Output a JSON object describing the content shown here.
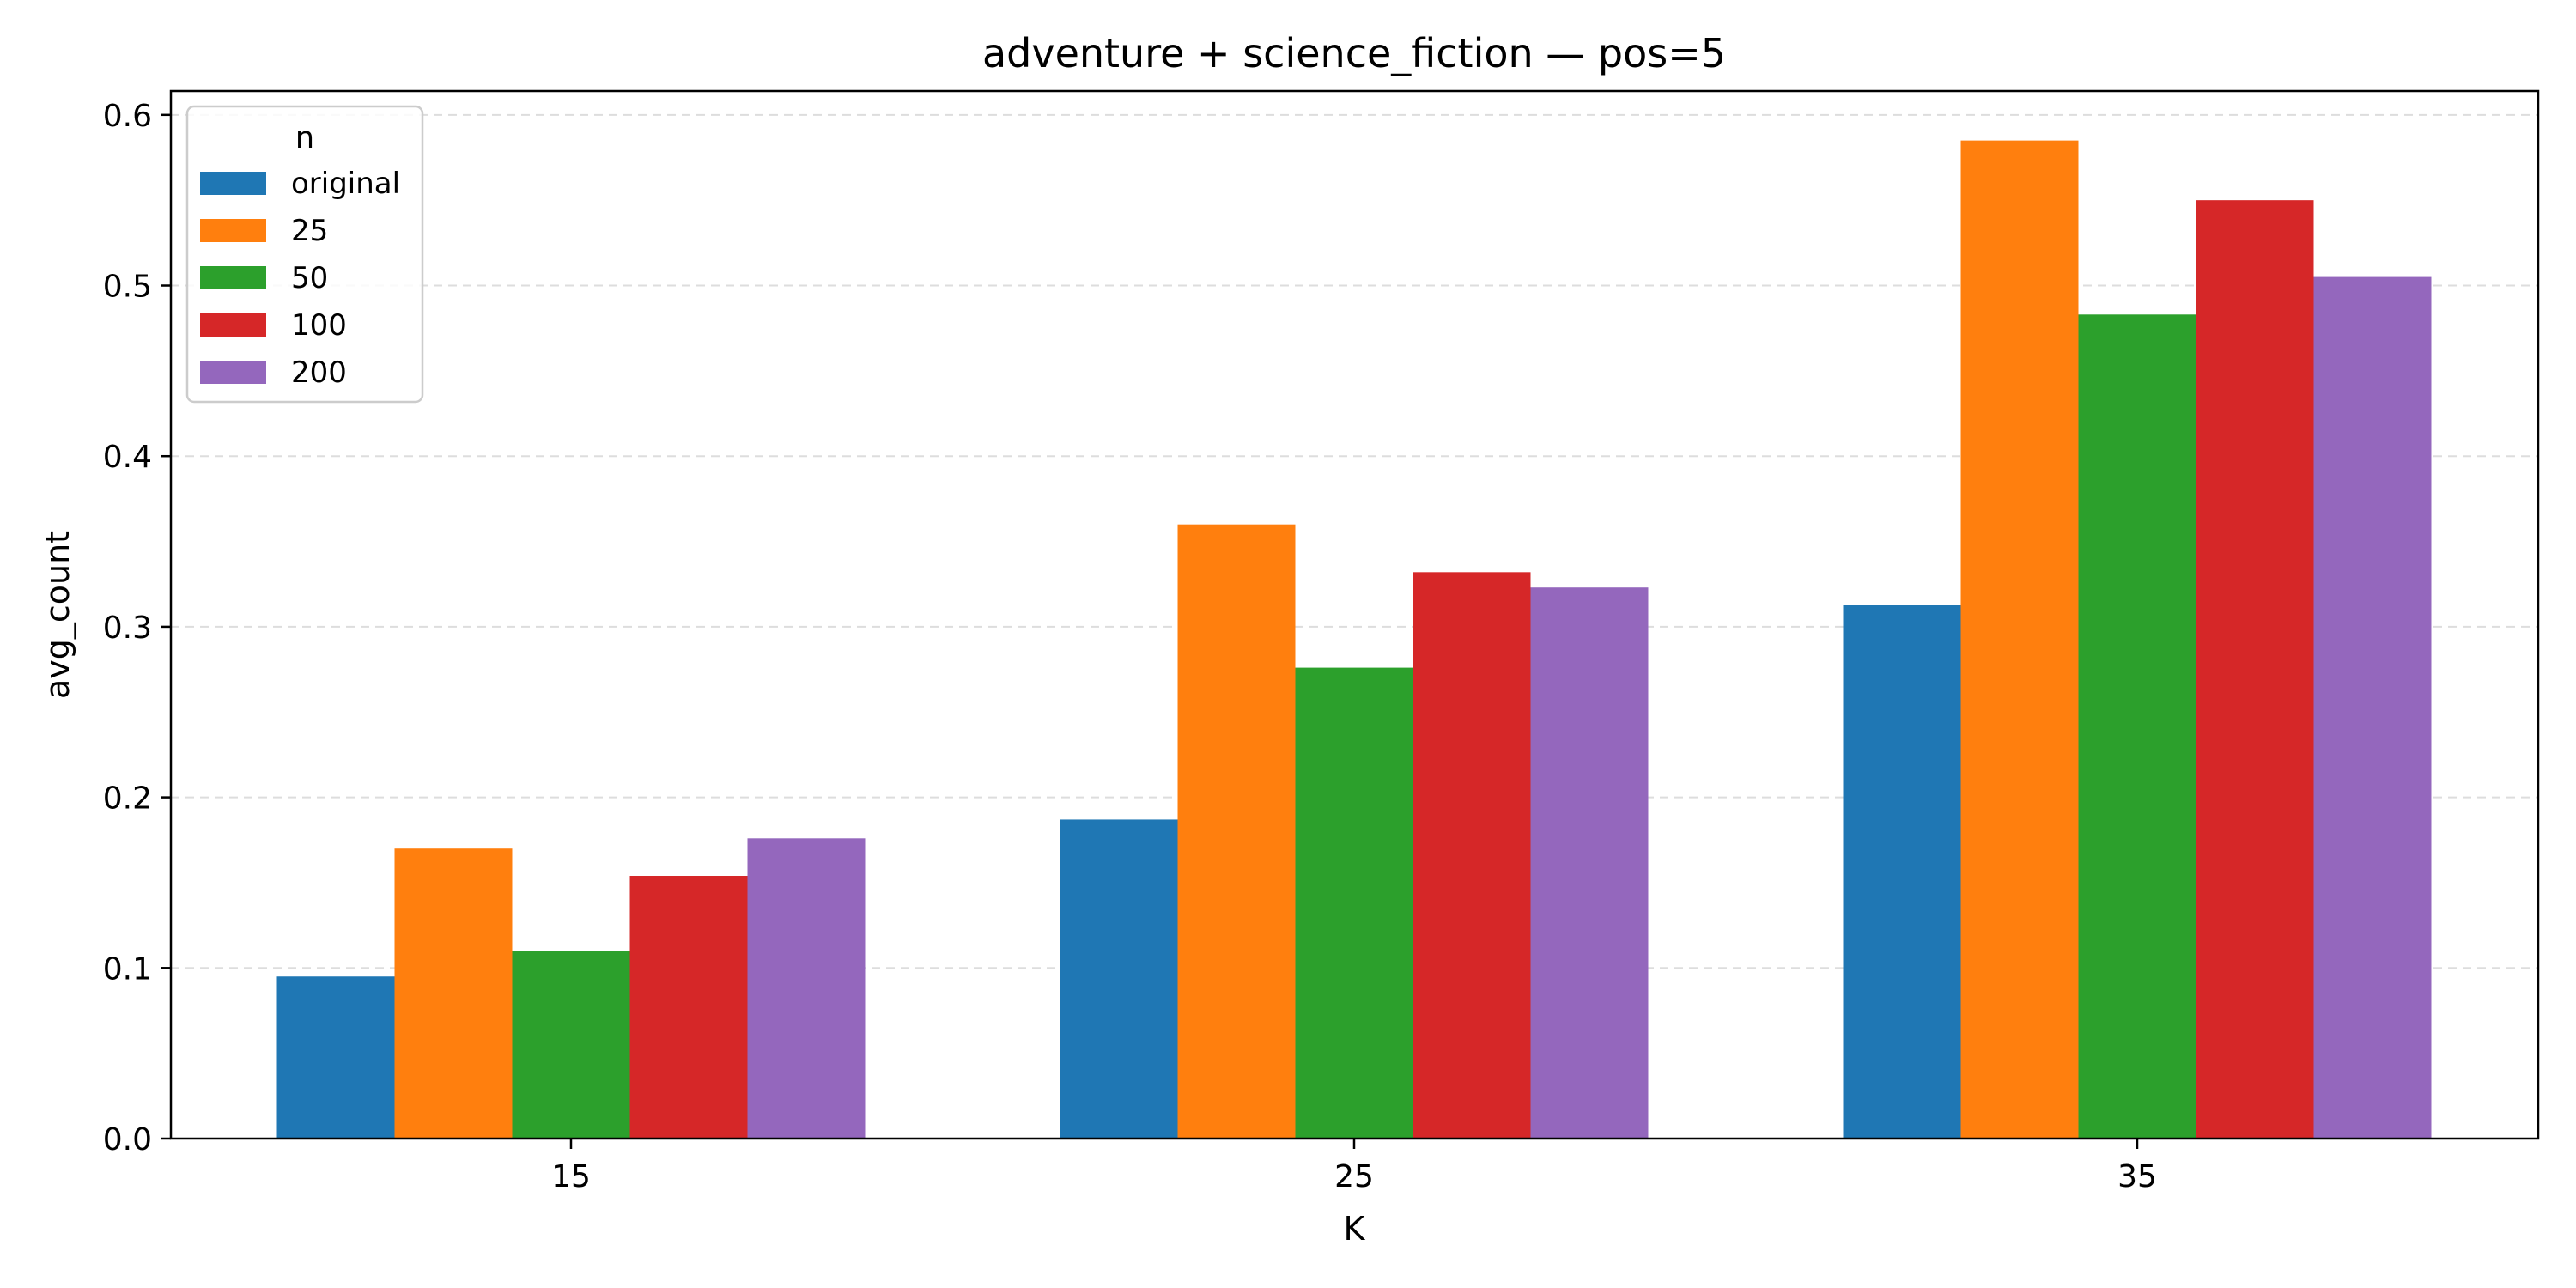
{
  "chart_data": {
    "type": "bar",
    "title": "adventure + science_fiction — pos=5",
    "xlabel": "K",
    "ylabel": "avg_count",
    "categories": [
      "15",
      "25",
      "35"
    ],
    "ylim": [
      0,
      0.614
    ],
    "yticks": [
      "0.0",
      "0.1",
      "0.2",
      "0.3",
      "0.4",
      "0.5",
      "0.6"
    ],
    "grid": "y-dashed",
    "legend": {
      "title": "n",
      "placement": "top-left"
    },
    "series": [
      {
        "name": "original",
        "color": "#1f77b4",
        "values": [
          0.095,
          0.187,
          0.313
        ]
      },
      {
        "name": "25",
        "color": "#ff7f0e",
        "values": [
          0.17,
          0.36,
          0.585
        ]
      },
      {
        "name": "50",
        "color": "#2ca02c",
        "values": [
          0.11,
          0.276,
          0.483
        ]
      },
      {
        "name": "100",
        "color": "#d62728",
        "values": [
          0.154,
          0.332,
          0.55
        ]
      },
      {
        "name": "200",
        "color": "#9467bd",
        "values": [
          0.176,
          0.323,
          0.505
        ]
      }
    ]
  }
}
